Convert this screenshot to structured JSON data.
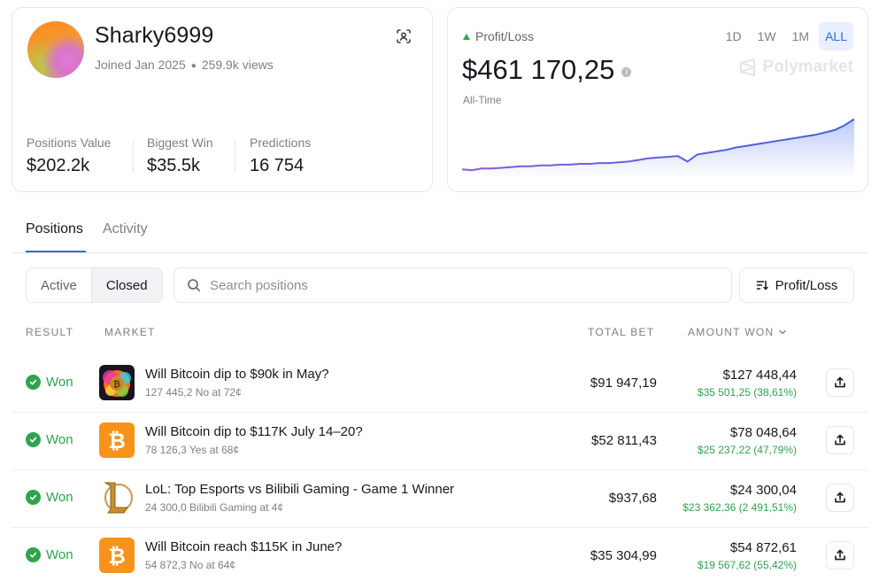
{
  "profile": {
    "username": "Sharky6999",
    "joined": "Joined Jan 2025",
    "views": "259.9k views",
    "stats": [
      {
        "label": "Positions Value",
        "value": "$202.2k"
      },
      {
        "label": "Biggest Win",
        "value": "$35.5k"
      },
      {
        "label": "Predictions",
        "value": "16 754"
      }
    ]
  },
  "pnl": {
    "label": "Profit/Loss",
    "value": "$461 170,25",
    "info": "i",
    "period_label": "All-Time",
    "ranges": [
      "1D",
      "1W",
      "1M",
      "ALL"
    ],
    "active_range": "ALL",
    "brand": "Polymarket",
    "colors": {
      "line": "#6f5bd8",
      "up": "#2fa34e",
      "accent": "#2f6bd8"
    }
  },
  "chart_data": {
    "type": "area",
    "title": "",
    "xlabel": "",
    "ylabel": "",
    "x": [
      0,
      1,
      2,
      3,
      4,
      5,
      6,
      7,
      8,
      9,
      10,
      11,
      12,
      13,
      14,
      15,
      16,
      17,
      18,
      19,
      20,
      21,
      22,
      23,
      24,
      25,
      26,
      27,
      28,
      29,
      30,
      31,
      32,
      33,
      34,
      35,
      36,
      37,
      38,
      39,
      40
    ],
    "series": [
      {
        "values": [
          2,
          1,
          3,
          3,
          4,
          5,
          6,
          6,
          7,
          7,
          8,
          8,
          9,
          9,
          10,
          10,
          11,
          12,
          14,
          16,
          17,
          18,
          19,
          12,
          21,
          23,
          25,
          27,
          30,
          32,
          34,
          36,
          38,
          40,
          42,
          44,
          46,
          49,
          52,
          58,
          66
        ]
      }
    ],
    "ylim": [
      0,
      70
    ],
    "grid": false,
    "legend": "none"
  },
  "tabs": [
    "Positions",
    "Activity"
  ],
  "filters": {
    "segments": [
      "Active",
      "Closed"
    ],
    "active_segment": "Closed",
    "search_placeholder": "Search positions",
    "sort_label": "Profit/Loss"
  },
  "table": {
    "headers": {
      "result": "RESULT",
      "market": "MARKET",
      "total_bet": "TOTAL BET",
      "amount_won": "AMOUNT WON"
    },
    "rows": [
      {
        "result": "Won",
        "image": "bitcoin-art",
        "title": "Will Bitcoin dip to $90k in May?",
        "subtitle": "127 445,2 No at 72¢",
        "total_bet": "$91 947,19",
        "amount_won": "$127 448,44",
        "gain": "$35 501,25 (38,61%)"
      },
      {
        "result": "Won",
        "image": "bitcoin-logo",
        "title": "Will Bitcoin dip to $117K July 14–20?",
        "subtitle": "78 126,3 Yes at 68¢",
        "total_bet": "$52 811,43",
        "amount_won": "$78 048,64",
        "gain": "$25 237,22 (47,79%)"
      },
      {
        "result": "Won",
        "image": "lol-logo",
        "title": "LoL: Top Esports vs Bilibili Gaming - Game 1 Winner",
        "subtitle": "24 300,0 Bilibili Gaming at 4¢",
        "total_bet": "$937,68",
        "amount_won": "$24 300,04",
        "gain": "$23 362,36 (2 491,51%)"
      },
      {
        "result": "Won",
        "image": "bitcoin-logo",
        "title": "Will Bitcoin reach $115K in June?",
        "subtitle": "54 872,3 No at 64¢",
        "total_bet": "$35 304,99",
        "amount_won": "$54 872,61",
        "gain": "$19 567,62 (55,42%)"
      }
    ]
  }
}
